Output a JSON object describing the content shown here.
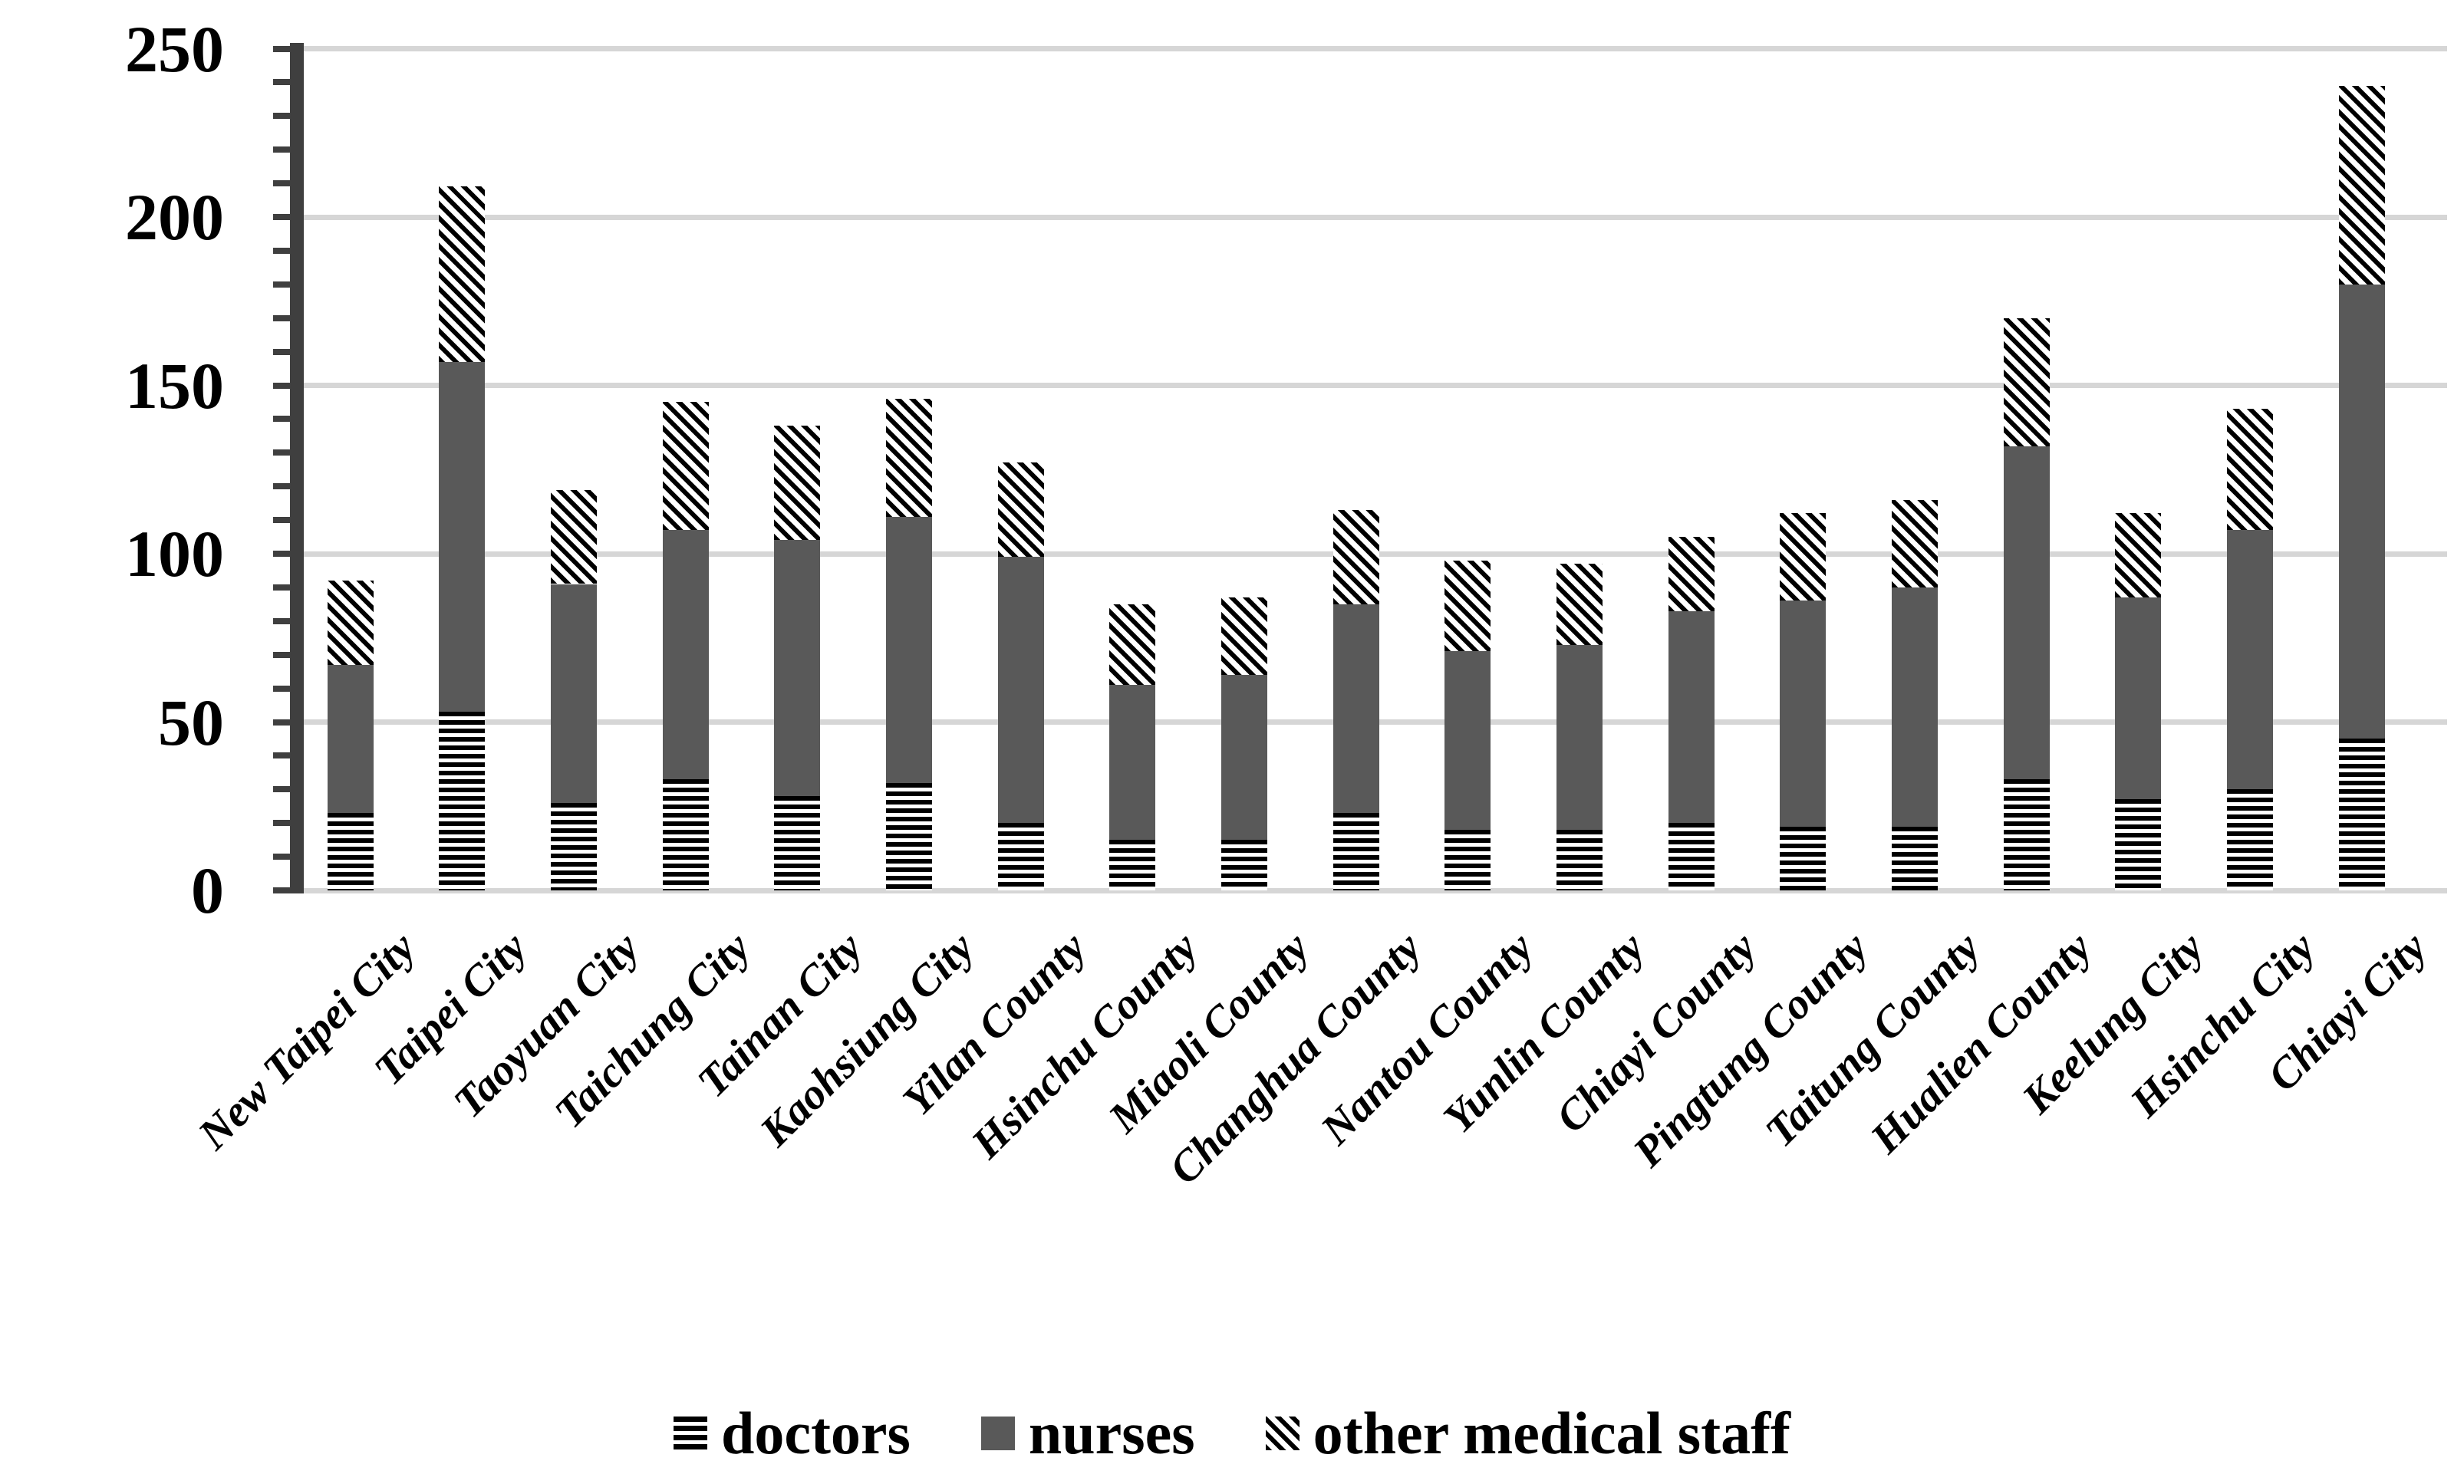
{
  "chart_data": {
    "type": "bar",
    "stacked": true,
    "title": "",
    "xlabel": "",
    "ylabel": "",
    "categories": [
      "New Taipei City",
      "Taipei City",
      "Taoyuan City",
      "Taichung City",
      "Tainan City",
      "Kaohsiung City",
      "Yilan County",
      "Hsinchu County",
      "Miaoli County",
      "Changhua County",
      "Nantou County",
      "Yunlin County",
      "Chiayi County",
      "Pingtung County",
      "Taitung County",
      "Hualien County",
      "Keelung City",
      "Hsinchu City",
      "Chiayi City"
    ],
    "series": [
      {
        "name": "doctors",
        "pattern": "horizontal-stripes",
        "values": [
          23,
          53,
          26,
          33,
          28,
          32,
          20,
          15,
          15,
          23,
          18,
          18,
          20,
          19,
          19,
          33,
          27,
          30,
          45
        ]
      },
      {
        "name": "nurses",
        "pattern": "solid",
        "values": [
          44,
          104,
          65,
          74,
          76,
          79,
          79,
          46,
          49,
          62,
          53,
          55,
          63,
          67,
          71,
          99,
          60,
          77,
          135
        ]
      },
      {
        "name": "other medical staff",
        "pattern": "diagonal-stripes",
        "values": [
          25,
          52,
          28,
          38,
          34,
          35,
          28,
          24,
          23,
          28,
          27,
          24,
          22,
          26,
          26,
          38,
          25,
          36,
          59
        ]
      }
    ],
    "stack_totals": [
      92,
      209,
      119,
      145,
      138,
      146,
      127,
      85,
      87,
      113,
      98,
      97,
      105,
      112,
      116,
      170,
      112,
      143,
      239
    ],
    "ylim": [
      0,
      250
    ],
    "y_axis": {
      "ticks": [
        0,
        50,
        100,
        150,
        200,
        250
      ],
      "minor_tick_step": 10
    },
    "grid": "horizontal-major",
    "legend_position": "bottom"
  },
  "colors": {
    "nurses_fill": "#595959",
    "pattern_ink": "#000000",
    "axis": "#3f3f3f",
    "gridline": "#d6d6d6",
    "background": "#ffffff"
  }
}
